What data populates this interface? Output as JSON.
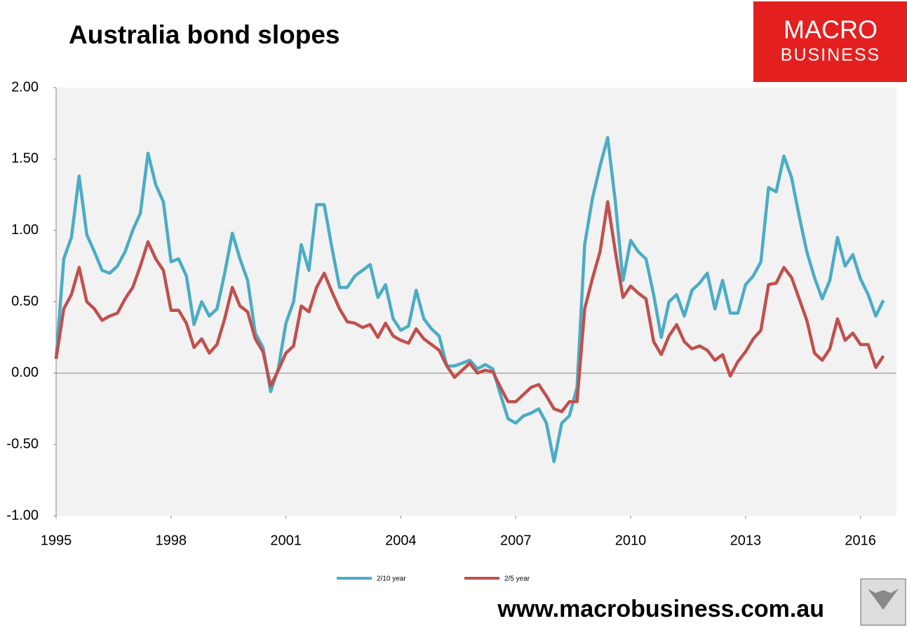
{
  "chart_data": {
    "type": "line",
    "title": "Australia bond slopes",
    "logo": {
      "line1": "MACRO",
      "line2": "BUSINESS"
    },
    "footer": "www.macrobusiness.com.au",
    "x": [
      1995.0,
      1995.2,
      1995.4,
      1995.6,
      1995.8,
      1996.0,
      1996.2,
      1996.4,
      1996.6,
      1996.8,
      1997.0,
      1997.2,
      1997.4,
      1997.6,
      1997.8,
      1998.0,
      1998.2,
      1998.4,
      1998.6,
      1998.8,
      1999.0,
      1999.2,
      1999.4,
      1999.6,
      1999.8,
      2000.0,
      2000.2,
      2000.4,
      2000.6,
      2000.8,
      2001.0,
      2001.2,
      2001.4,
      2001.6,
      2001.8,
      2002.0,
      2002.2,
      2002.4,
      2002.6,
      2002.8,
      2003.0,
      2003.2,
      2003.4,
      2003.6,
      2003.8,
      2004.0,
      2004.2,
      2004.4,
      2004.6,
      2004.8,
      2005.0,
      2005.2,
      2005.4,
      2005.6,
      2005.8,
      2006.0,
      2006.2,
      2006.4,
      2006.6,
      2006.8,
      2007.0,
      2007.2,
      2007.4,
      2007.6,
      2007.8,
      2008.0,
      2008.2,
      2008.4,
      2008.6,
      2008.8,
      2009.0,
      2009.2,
      2009.4,
      2009.6,
      2009.8,
      2010.0,
      2010.2,
      2010.4,
      2010.6,
      2010.8,
      2011.0,
      2011.2,
      2011.4,
      2011.6,
      2011.8,
      2012.0,
      2012.2,
      2012.4,
      2012.6,
      2012.8,
      2013.0,
      2013.2,
      2013.4,
      2013.6,
      2013.8,
      2014.0,
      2014.2,
      2014.4,
      2014.6,
      2014.8,
      2015.0,
      2015.2,
      2015.4,
      2015.6,
      2015.8,
      2016.0,
      2016.2,
      2016.4,
      2016.6
    ],
    "series": [
      {
        "name": "2/10 year",
        "color": "#4bacc6",
        "values": [
          0.1,
          0.8,
          0.95,
          1.38,
          0.97,
          0.85,
          0.72,
          0.7,
          0.75,
          0.85,
          1.0,
          1.12,
          1.54,
          1.32,
          1.2,
          0.78,
          0.8,
          0.68,
          0.34,
          0.5,
          0.4,
          0.45,
          0.7,
          0.98,
          0.8,
          0.65,
          0.28,
          0.18,
          -0.13,
          0.03,
          0.35,
          0.5,
          0.9,
          0.72,
          1.18,
          1.18,
          0.88,
          0.6,
          0.6,
          0.68,
          0.72,
          0.76,
          0.53,
          0.62,
          0.38,
          0.3,
          0.33,
          0.58,
          0.38,
          0.31,
          0.26,
          0.05,
          0.05,
          0.07,
          0.09,
          0.03,
          0.06,
          0.03,
          -0.15,
          -0.32,
          -0.35,
          -0.3,
          -0.28,
          -0.25,
          -0.35,
          -0.62,
          -0.35,
          -0.3,
          -0.1,
          0.9,
          1.22,
          1.45,
          1.65,
          1.2,
          0.65,
          0.93,
          0.85,
          0.8,
          0.55,
          0.25,
          0.5,
          0.55,
          0.4,
          0.58,
          0.63,
          0.7,
          0.45,
          0.65,
          0.42,
          0.42,
          0.62,
          0.68,
          0.78,
          1.3,
          1.27,
          1.52,
          1.37,
          1.1,
          0.85,
          0.67,
          0.52,
          0.65,
          0.95,
          0.75,
          0.83,
          0.66,
          0.55,
          0.4,
          0.51
        ]
      },
      {
        "name": "2/5 year",
        "color": "#c0504d",
        "values": [
          0.1,
          0.45,
          0.55,
          0.74,
          0.5,
          0.45,
          0.37,
          0.4,
          0.42,
          0.52,
          0.6,
          0.75,
          0.92,
          0.8,
          0.72,
          0.44,
          0.44,
          0.35,
          0.18,
          0.24,
          0.14,
          0.2,
          0.38,
          0.6,
          0.47,
          0.43,
          0.24,
          0.15,
          -0.09,
          0.02,
          0.14,
          0.19,
          0.47,
          0.43,
          0.6,
          0.7,
          0.57,
          0.45,
          0.36,
          0.35,
          0.32,
          0.34,
          0.25,
          0.35,
          0.26,
          0.23,
          0.21,
          0.31,
          0.24,
          0.2,
          0.16,
          0.05,
          -0.03,
          0.02,
          0.07,
          0.0,
          0.02,
          0.01,
          -0.1,
          -0.2,
          -0.2,
          -0.15,
          -0.1,
          -0.08,
          -0.16,
          -0.25,
          -0.27,
          -0.2,
          -0.2,
          0.45,
          0.66,
          0.85,
          1.2,
          0.85,
          0.53,
          0.61,
          0.56,
          0.52,
          0.22,
          0.13,
          0.26,
          0.34,
          0.22,
          0.17,
          0.19,
          0.16,
          0.09,
          0.13,
          -0.02,
          0.08,
          0.15,
          0.24,
          0.3,
          0.62,
          0.63,
          0.74,
          0.67,
          0.52,
          0.37,
          0.14,
          0.09,
          0.17,
          0.38,
          0.23,
          0.28,
          0.2,
          0.2,
          0.04,
          0.12
        ]
      }
    ],
    "xlim": [
      1995,
      2016.94
    ],
    "xticks": [
      1995,
      1998,
      2001,
      2004,
      2007,
      2010,
      2013,
      2016
    ],
    "ylim": [
      -1,
      2
    ],
    "yticks": [
      {
        "value": -1,
        "label": "-1.00"
      },
      {
        "value": -0.5,
        "label": "-0.50"
      },
      {
        "value": 0,
        "label": "0.00"
      },
      {
        "value": 0.5,
        "label": "0.50"
      },
      {
        "value": 1,
        "label": "1.00"
      },
      {
        "value": 1.5,
        "label": "1.50"
      },
      {
        "value": 2,
        "label": "2.00"
      }
    ],
    "grid": false,
    "legend": "bottom"
  }
}
